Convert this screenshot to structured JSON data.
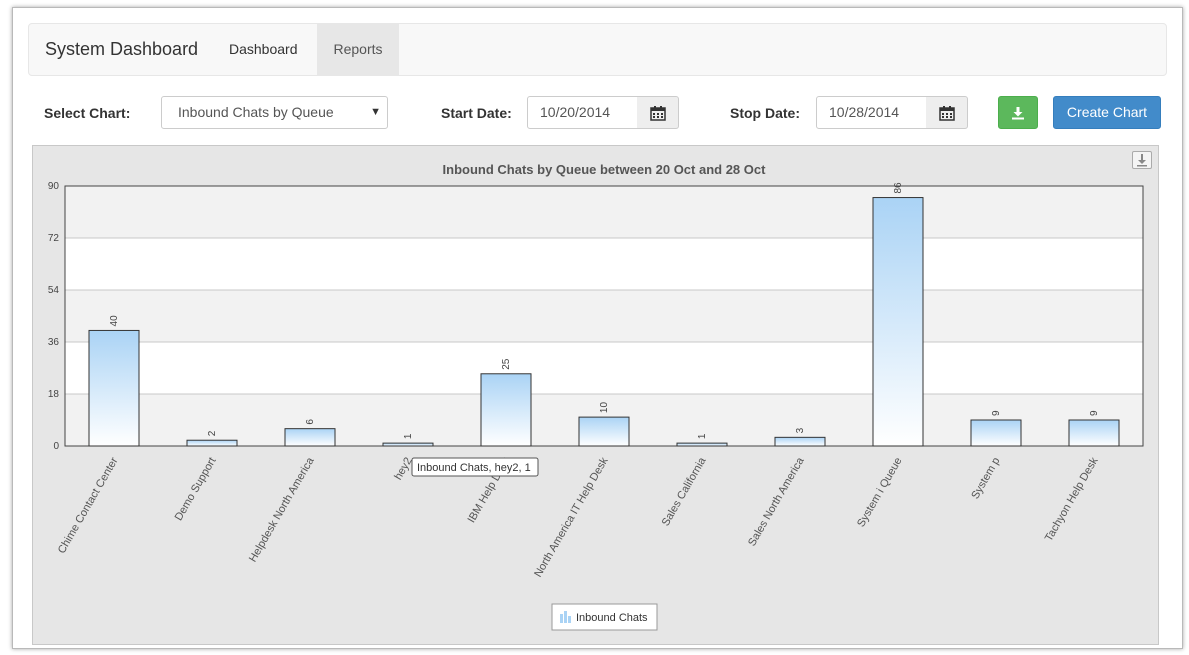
{
  "navbar": {
    "brand": "System Dashboard",
    "tabs": [
      {
        "label": "Dashboard",
        "active": false
      },
      {
        "label": "Reports",
        "active": true
      }
    ]
  },
  "controls": {
    "select_chart_label": "Select Chart:",
    "select_chart_value": "Inbound Chats by Queue",
    "start_date_label": "Start Date:",
    "start_date_value": "10/20/2014",
    "stop_date_label": "Stop Date:",
    "stop_date_value": "10/28/2014",
    "create_button": "Create Chart",
    "download_icon": "download-icon",
    "calendar_icon": "calendar-icon"
  },
  "colors": {
    "download_button": "#5cb85c",
    "create_button": "#428bca",
    "bar_top": "#aad3f5",
    "bar_bottom": "#ffffff"
  },
  "chart_data": {
    "type": "bar",
    "title": "Inbound Chats by Queue between 20 Oct and 28 Oct",
    "categories": [
      "Chime Contact Center",
      "Demo Support",
      "Helpdesk North America",
      "hey2",
      "IBM Help Desk",
      "North America IT Help Desk",
      "Sales California",
      "Sales North America",
      "System i Queue",
      "System p",
      "Tachyon Help Desk"
    ],
    "series": [
      {
        "name": "Inbound Chats",
        "values": [
          40,
          2,
          6,
          1,
          25,
          10,
          1,
          3,
          86,
          9,
          9
        ]
      }
    ],
    "ylim": [
      0,
      90
    ],
    "yticks": [
      0,
      18,
      36,
      54,
      72,
      90
    ],
    "grid": true,
    "legend": "bottom-center",
    "tooltip": {
      "text": "Inbound Chats, hey2, 1",
      "category": "hey2"
    }
  }
}
